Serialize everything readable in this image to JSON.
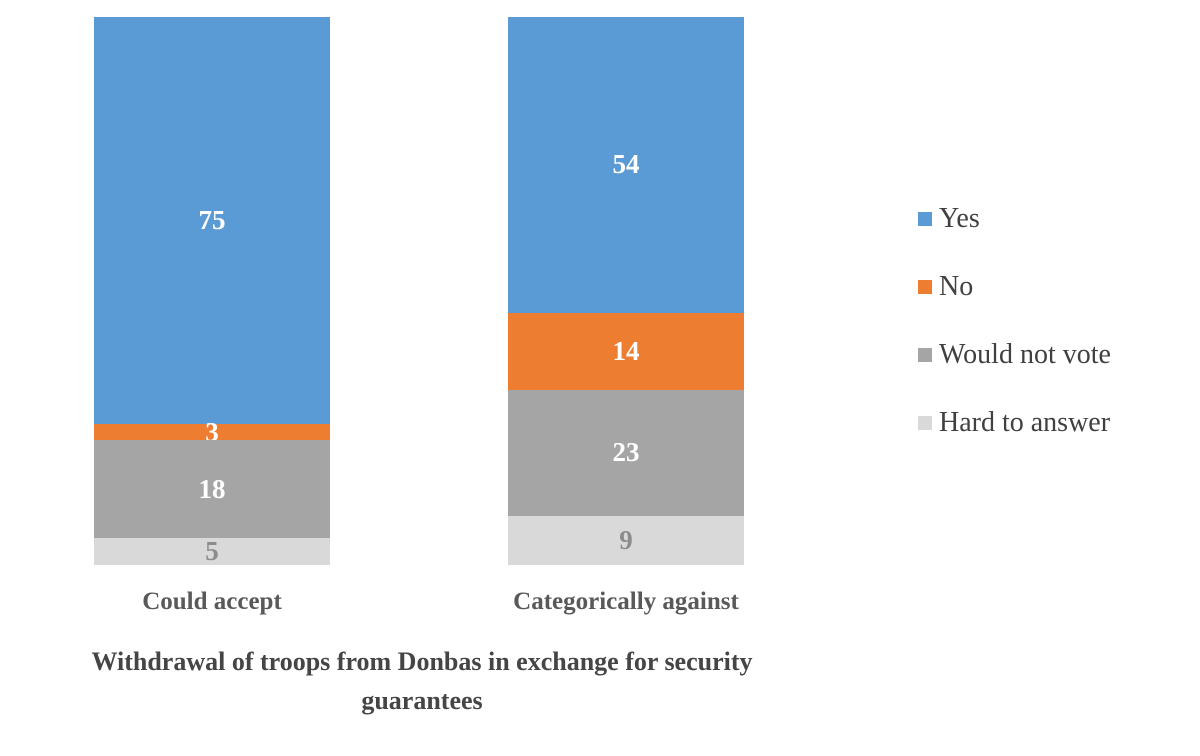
{
  "chart_data": {
    "type": "bar",
    "subtype": "stacked-100",
    "categories": [
      "Could accept",
      "Categorically against"
    ],
    "series": [
      {
        "name": "Yes",
        "color": "#5B9BD5",
        "label_color": "#FFFFFF",
        "values": [
          75,
          54
        ]
      },
      {
        "name": "No",
        "color": "#ED7D31",
        "label_color": "#FFFFFF",
        "values": [
          3,
          14
        ]
      },
      {
        "name": "Would not vote",
        "color": "#A5A5A5",
        "label_color": "#FFFFFF",
        "values": [
          18,
          23
        ]
      },
      {
        "name": "Hard to answer",
        "color": "#D9D9D9",
        "label_color": "#8C8C8C",
        "values": [
          5,
          9
        ]
      }
    ],
    "title": "",
    "xlabel": "Withdrawal of troops from Donbas in exchange for security guarantees",
    "ylabel": "",
    "ylim": [
      0,
      100
    ],
    "grid": false,
    "legend_position": "right",
    "data_labels": true
  }
}
